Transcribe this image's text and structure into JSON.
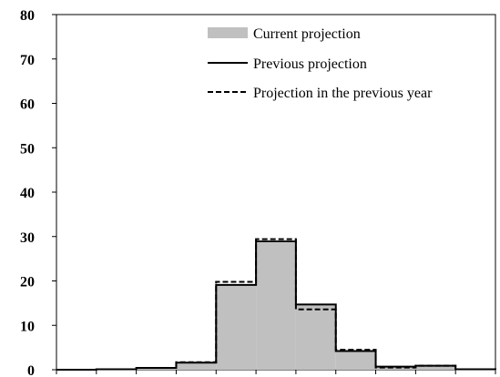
{
  "chart_data": {
    "type": "bar",
    "title": "",
    "xlabel": "",
    "ylabel": "",
    "ylim": [
      0,
      80
    ],
    "yticks": [
      0,
      10,
      20,
      30,
      40,
      50,
      60,
      70,
      80
    ],
    "grid": false,
    "legend_position": "top-right",
    "bin_count": 11,
    "series": [
      {
        "name": "Current projection",
        "style": "filled",
        "color": "#c0c0c0",
        "values": [
          0,
          0.1,
          0.4,
          1.6,
          19.1,
          28.6,
          14.5,
          4.2,
          0.7,
          0.9,
          0.1
        ]
      },
      {
        "name": "Previous projection",
        "style": "solid",
        "color": "#000000",
        "values": [
          0,
          0.1,
          0.4,
          1.6,
          19.1,
          28.9,
          14.7,
          4.2,
          0.7,
          0.9,
          0.1
        ]
      },
      {
        "name": "Projection in the previous year",
        "style": "dashed",
        "color": "#000000",
        "values": [
          0,
          0.1,
          0.4,
          1.7,
          19.8,
          29.4,
          13.6,
          4.5,
          0.5,
          0.9,
          0.1
        ]
      }
    ]
  }
}
